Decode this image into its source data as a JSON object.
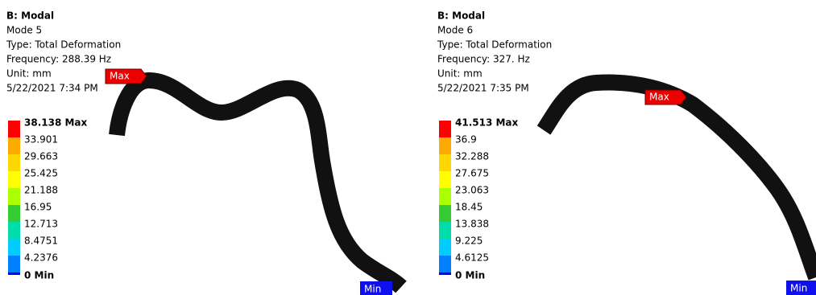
{
  "panels": [
    {
      "header": [
        "B: Modal",
        "Mode 5",
        "Type: Total Deformation",
        "Frequency: 288.39 Hz",
        "Unit: mm",
        "5/22/2021 7:34 PM"
      ],
      "legend": [
        "38.138 Max",
        "33.901",
        "29.663",
        "25.425",
        "21.188",
        "16.95",
        "12.713",
        "8.4751",
        "4.2376",
        "0 Min"
      ],
      "max_tag": "Max",
      "min_tag": "Min"
    },
    {
      "header": [
        "B: Modal",
        "Mode 6",
        "Type: Total Deformation",
        "Frequency: 327. Hz",
        "Unit: mm",
        "5/22/2021 7:35 PM"
      ],
      "legend": [
        "41.513 Max",
        "36.9",
        "32.288",
        "27.675",
        "23.063",
        "18.45",
        "13.838",
        "9.225",
        "4.6125",
        "0 Min"
      ],
      "max_tag": "Max",
      "min_tag": "Min"
    }
  ]
}
